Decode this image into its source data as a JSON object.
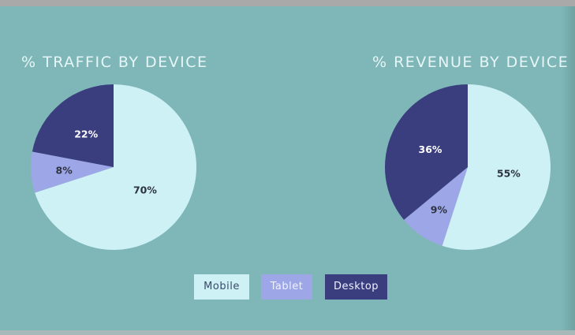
{
  "chart_data": [
    {
      "type": "pie",
      "title": "% TRAFFIC BY DEVICE",
      "slices": [
        {
          "name": "Mobile",
          "value": 70,
          "label": "70%"
        },
        {
          "name": "Tablet",
          "value": 8,
          "label": "8%"
        },
        {
          "name": "Desktop",
          "value": 22,
          "label": "22%"
        }
      ]
    },
    {
      "type": "pie",
      "title": "% REVENUE BY DEVICE",
      "slices": [
        {
          "name": "Mobile",
          "value": 55,
          "label": "55%"
        },
        {
          "name": "Tablet",
          "value": 9,
          "label": "9%"
        },
        {
          "name": "Desktop",
          "value": 36,
          "label": "36%"
        }
      ]
    }
  ],
  "legend": {
    "items": [
      {
        "label": "Mobile",
        "color": "#cdf1f4"
      },
      {
        "label": "Tablet",
        "color": "#9da6e6"
      },
      {
        "label": "Desktop",
        "color": "#3a3d7e"
      }
    ]
  },
  "colors": {
    "background": "#7fb7b8",
    "mobile": "#cdf1f4",
    "tablet": "#9da6e6",
    "desktop": "#3a3d7e",
    "label_dark": "#2d3340",
    "label_light": "#ffffff"
  }
}
